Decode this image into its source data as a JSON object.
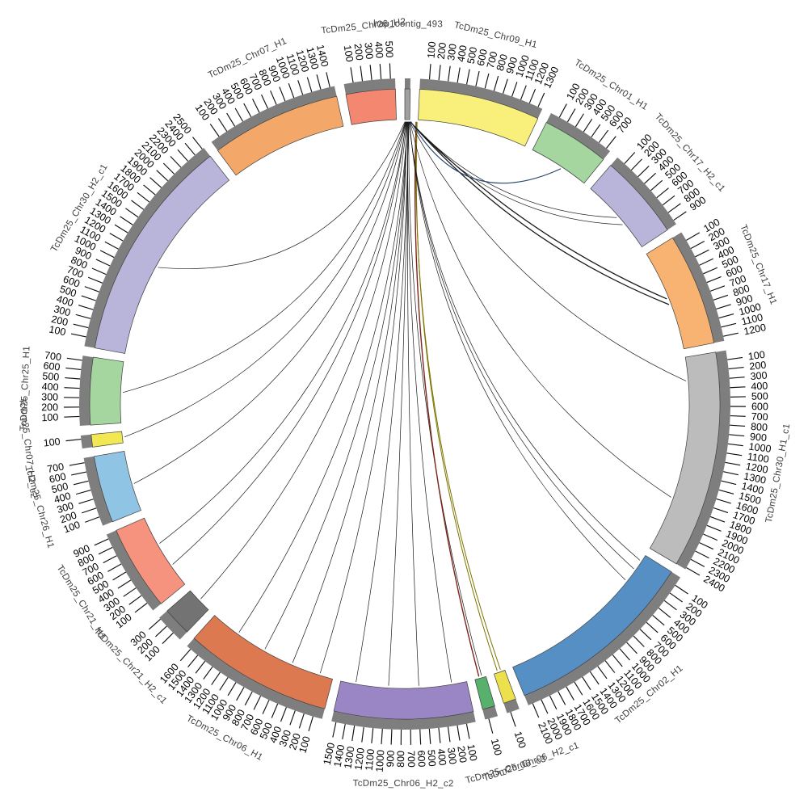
{
  "figure": {
    "background": "#ffffff",
    "rim_color": "#7e7e7e",
    "band_outline": "#3f3f3f",
    "tick_color": "#111111",
    "default_link_color": "#1a1a1a"
  },
  "chart_data": {
    "type": "circos-chord",
    "title": "",
    "tick_interval": 100,
    "gap_deg": 1.7,
    "start_deg": 0,
    "legend_position": "none",
    "grid": false,
    "segments": [
      {
        "name": "hap1contig_493",
        "length": 60,
        "color": "#a0a0a0"
      },
      {
        "name": "TcDm25_Chr09_H1",
        "length": 1350,
        "color": "#f9f07b"
      },
      {
        "name": "TcDm25_Chr01_H1",
        "length": 750,
        "color": "#a5d6a0"
      },
      {
        "name": "TcDm25_Chr17_H2_c1",
        "length": 950,
        "color": "#b9b4d9"
      },
      {
        "name": "TcDm25_Chr17_H1",
        "length": 1250,
        "color": "#f8b271"
      },
      {
        "name": "TcDm25_Chr30_H1_c1",
        "length": 2420,
        "color": "#bcbcbc"
      },
      {
        "name": "TcDm25_Chr02_H1",
        "length": 2150,
        "color": "#568fc4"
      },
      {
        "name": "TcDm25_Chr06_H2_c1",
        "length": 140,
        "color": "#ece04d"
      },
      {
        "name": "TcDm25_Chr06_c3",
        "length": 140,
        "color": "#57b06c"
      },
      {
        "name": "TcDm25_Chr06_H2_c2",
        "length": 1550,
        "color": "#9b86c5"
      },
      {
        "name": "TcDm25_Chr06_H1",
        "length": 1650,
        "color": "#dd7950"
      },
      {
        "name": "TcDm25_Chr21_H2_c1",
        "length": 320,
        "color": "#737373"
      },
      {
        "name": "TcDm25_Chr21_H1",
        "length": 950,
        "color": "#f6937f"
      },
      {
        "name": "TcDm25_Chr26_H1",
        "length": 750,
        "color": "#90c4e4"
      },
      {
        "name": "TcDm25_Chr07_H2_c2",
        "length": 140,
        "color": "#f1e854"
      },
      {
        "name": "TcDm25_Chr25_H1",
        "length": 750,
        "color": "#a5d6a0"
      },
      {
        "name": "TcDm25_Chr30_H2_c1",
        "length": 2520,
        "color": "#b9b4d9"
      },
      {
        "name": "TcDm25_Chr07_H1",
        "length": 1450,
        "color": "#f3a869"
      },
      {
        "name": "TcDm25_Chr26_H2",
        "length": 550,
        "color": "#f4876f"
      }
    ],
    "links": [
      {
        "source": "hap1contig_493",
        "target": "TcDm25_Chr30_H2_c1",
        "pos": 0.45,
        "src": 0.0,
        "h": 0.42
      },
      {
        "source": "hap1contig_493",
        "target": "TcDm25_Chr25_H1",
        "pos": 0.5,
        "src": 0.1
      },
      {
        "source": "hap1contig_493",
        "target": "TcDm25_Chr07_H2_c2",
        "pos": 0.5,
        "src": 0.15
      },
      {
        "source": "hap1contig_493",
        "target": "TcDm25_Chr26_H1",
        "pos": 0.45,
        "src": 0.2
      },
      {
        "source": "hap1contig_493",
        "target": "TcDm25_Chr21_H1",
        "pos": 0.3,
        "src": 0.25
      },
      {
        "source": "hap1contig_493",
        "target": "TcDm25_Chr21_H1",
        "pos": 0.62,
        "src": 0.3
      },
      {
        "source": "hap1contig_493",
        "target": "TcDm25_Chr21_H2_c1",
        "pos": 0.5,
        "src": 0.35
      },
      {
        "source": "hap1contig_493",
        "target": "TcDm25_Chr06_H1",
        "pos": 0.1,
        "src": 0.4
      },
      {
        "source": "hap1contig_493",
        "target": "TcDm25_Chr06_H1",
        "pos": 0.32,
        "src": 0.45
      },
      {
        "source": "hap1contig_493",
        "target": "TcDm25_Chr06_H1",
        "pos": 0.55,
        "src": 0.5
      },
      {
        "source": "hap1contig_493",
        "target": "TcDm25_Chr06_H1",
        "pos": 0.78,
        "src": 0.55
      },
      {
        "source": "hap1contig_493",
        "target": "TcDm25_Chr06_H2_c2",
        "pos": 0.12,
        "src": 0.6
      },
      {
        "source": "hap1contig_493",
        "target": "TcDm25_Chr06_H2_c2",
        "pos": 0.38,
        "src": 0.65
      },
      {
        "source": "hap1contig_493",
        "target": "TcDm25_Chr06_H2_c2",
        "pos": 0.62,
        "src": 0.7
      },
      {
        "source": "hap1contig_493",
        "target": "TcDm25_Chr06_H2_c2",
        "pos": 0.88,
        "src": 0.75
      },
      {
        "source": "hap1contig_493",
        "target": "TcDm25_Chr06_c3",
        "pos": 0.35,
        "src": 0.8
      },
      {
        "source": "hap1contig_493",
        "target": "TcDm25_Chr06_c3",
        "pos": 0.6,
        "src": 2.3,
        "color": "#7b241c",
        "width": 1.4
      },
      {
        "source": "hap1contig_493",
        "target": "TcDm25_Chr06_H2_c1",
        "pos": 0.35,
        "src": 2.4,
        "color": "#7d7400",
        "width": 1.0
      },
      {
        "source": "hap1contig_493",
        "target": "TcDm25_Chr06_H2_c1",
        "pos": 0.65,
        "src": 2.5,
        "color": "#7d7400",
        "width": 1.0
      },
      {
        "source": "hap1contig_493",
        "target": "TcDm25_Chr02_H1",
        "pos": 0.04,
        "src": 0.85
      },
      {
        "source": "hap1contig_493",
        "target": "TcDm25_Chr02_H1",
        "pos": 0.1,
        "src": 0.9
      },
      {
        "source": "hap1contig_493",
        "target": "TcDm25_Chr02_H1",
        "pos": 0.18,
        "src": 0.95
      },
      {
        "source": "hap1contig_493",
        "target": "TcDm25_Chr30_H1_c1",
        "pos": 0.12,
        "src": 1.0,
        "h": 0.3
      },
      {
        "source": "hap1contig_493",
        "target": "TcDm25_Chr30_H1_c1",
        "pos": 0.72,
        "src": 1.05,
        "h": 0.55
      },
      {
        "source": "hap1contig_493",
        "target": "TcDm25_Chr17_H1",
        "pos": 0.48,
        "src": 1.1,
        "width": 1.3,
        "h": 0.13
      },
      {
        "source": "hap1contig_493",
        "target": "TcDm25_Chr17_H1",
        "pos": 0.54,
        "src": 1.15,
        "width": 1.3,
        "h": 0.16
      },
      {
        "source": "hap1contig_493",
        "target": "TcDm25_Chr17_H2_c1",
        "pos": 0.5,
        "src": 1.2,
        "h": 0.18
      },
      {
        "source": "hap1contig_493",
        "target": "TcDm25_Chr17_H2_c1",
        "pos": 0.62,
        "src": 1.25,
        "h": 0.2
      },
      {
        "source": "hap1contig_493",
        "target": "TcDm25_Chr01_H1",
        "pos": 0.55,
        "src": 1.3,
        "color": "#27436e",
        "width": 1.1,
        "h": 0.26
      }
    ]
  }
}
